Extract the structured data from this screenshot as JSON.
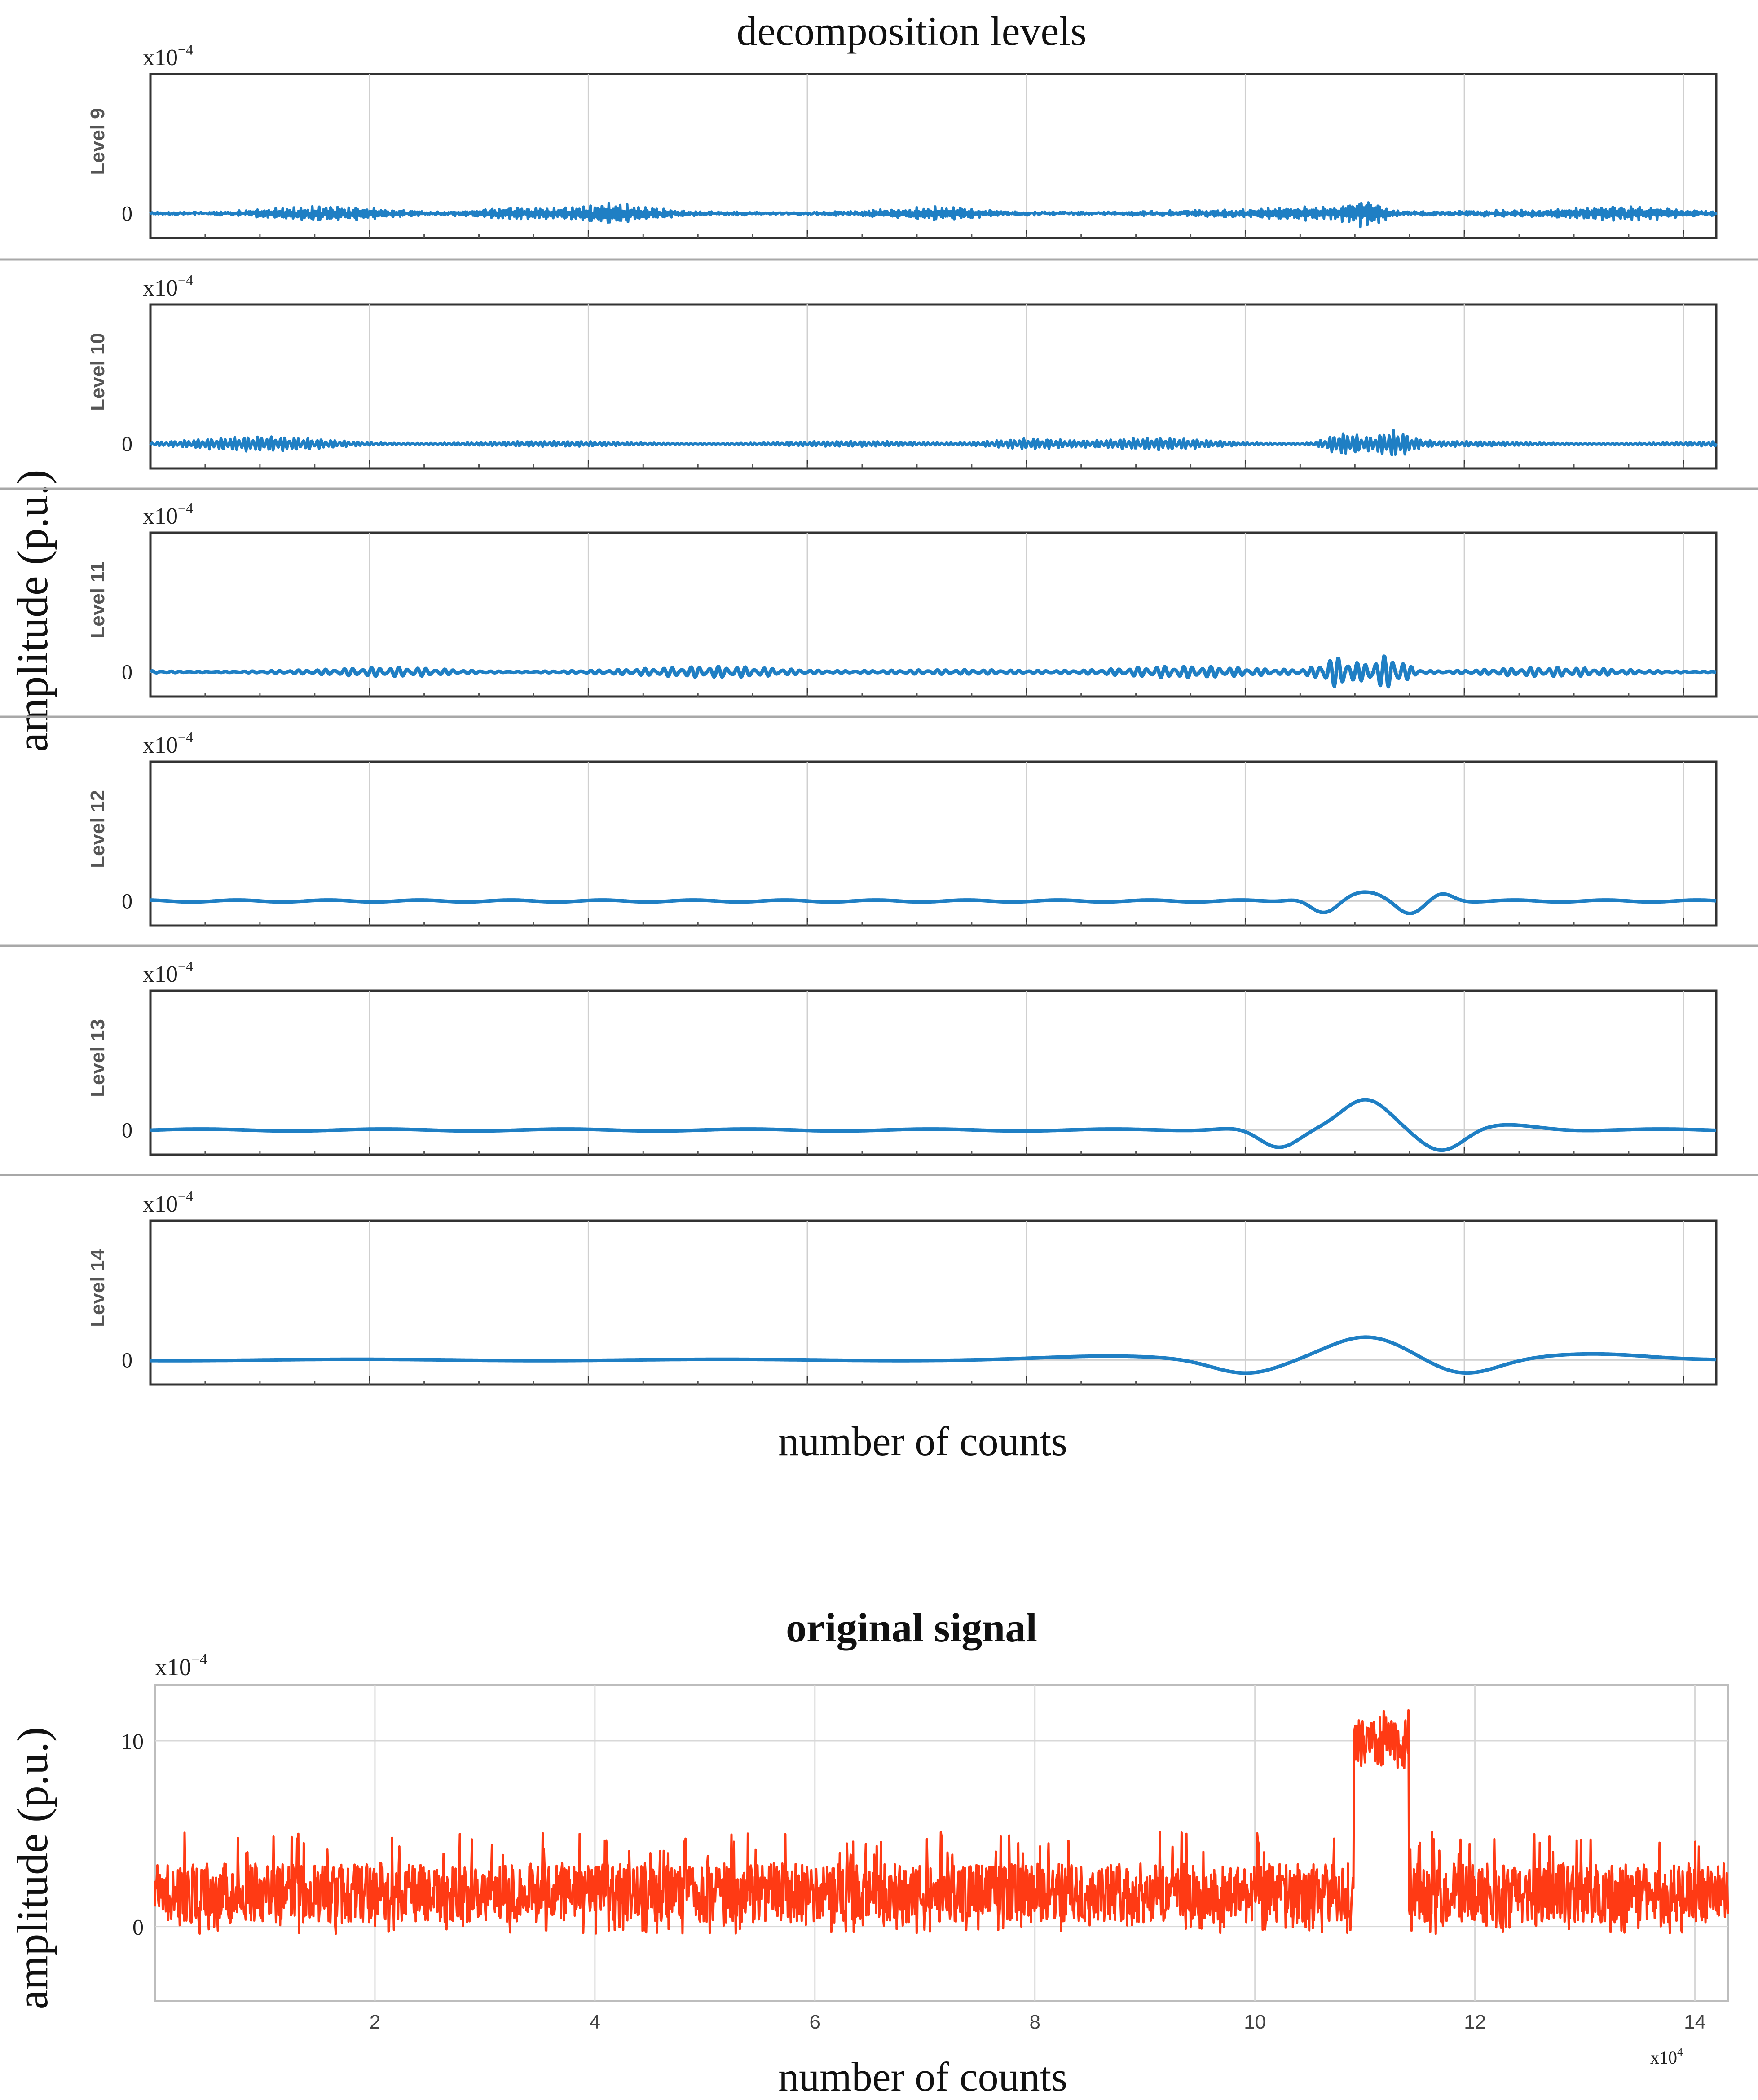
{
  "chart_data": {
    "type": "line",
    "decomposition": {
      "title": "decomposition levels",
      "xlabel": "number of counts",
      "ylabel": "amplitude (p.u.)",
      "xlim": [
        0,
        14.3
      ],
      "xticks": [
        2,
        4,
        6,
        8,
        10,
        12,
        14
      ],
      "x_scale_label": "x10",
      "x_scale_exp": "4",
      "color": "#1f7fc4",
      "panels": [
        {
          "label": "Level 9",
          "scale_label": "x10",
          "scale_exp": "−4",
          "ytick": "0",
          "ylim": [
            -0.15,
            0.85
          ],
          "description": "high-frequency oscillation around 0, largest burst near x=11.1",
          "events": [
            {
              "x": 11.1,
              "amplitude": 0.1
            }
          ]
        },
        {
          "label": "Level 10",
          "scale_label": "x10",
          "scale_exp": "−4",
          "ytick": "0",
          "ylim": [
            -0.15,
            0.85
          ],
          "description": "oscillation around 0 with bursts near x=10.9 and x=11.4",
          "events": [
            {
              "x": 10.9,
              "amplitude": 0.1
            },
            {
              "x": 11.4,
              "amplitude": 0.1
            }
          ]
        },
        {
          "label": "Level 11",
          "scale_label": "x10",
          "scale_exp": "−4",
          "ytick": "0",
          "ylim": [
            -0.15,
            0.85
          ],
          "description": "lower-frequency ripples, bursts near x=10.9 and x=11.3",
          "events": [
            {
              "x": 10.9,
              "amplitude": 0.09
            },
            {
              "x": 11.3,
              "amplitude": 0.1
            }
          ]
        },
        {
          "label": "Level 12",
          "scale_label": "x10",
          "scale_exp": "−4",
          "ytick": "0",
          "ylim": [
            -0.15,
            0.85
          ],
          "description": "smooth ripples; dips at x=10.7 and x=11.5, peak near x=11.1",
          "events": [
            {
              "x": 10.7,
              "amplitude": -0.07
            },
            {
              "x": 11.1,
              "amplitude": 0.05
            },
            {
              "x": 11.5,
              "amplitude": -0.07
            }
          ]
        },
        {
          "label": "Level 13",
          "scale_label": "x10",
          "scale_exp": "−4",
          "ytick": "0",
          "ylim": [
            -0.15,
            0.85
          ],
          "description": "slow wave; minima at x=10.3 and x=11.8, maximum at x=11.1",
          "events": [
            {
              "x": 10.3,
              "amplitude": -0.12
            },
            {
              "x": 11.1,
              "amplitude": 0.18
            },
            {
              "x": 11.8,
              "amplitude": -0.13
            }
          ]
        },
        {
          "label": "Level 14",
          "scale_label": "x10",
          "scale_exp": "−4",
          "ytick": "0",
          "ylim": [
            -0.15,
            0.85
          ],
          "description": "very slow wave; minima near x=10.0 and x=12.0, maximum near x=11.1",
          "events": [
            {
              "x": 10.0,
              "amplitude": -0.08
            },
            {
              "x": 11.1,
              "amplitude": 0.14
            },
            {
              "x": 12.0,
              "amplitude": -0.09
            }
          ]
        }
      ]
    },
    "original": {
      "title": "original signal",
      "xlabel": "number of counts",
      "ylabel": "amplitude (p.u.)",
      "xlim": [
        0,
        14.3
      ],
      "ylim": [
        -4,
        13
      ],
      "xticks": [
        2,
        4,
        6,
        8,
        10,
        12,
        14
      ],
      "xtick_labels": [
        "2",
        "4",
        "6",
        "8",
        "10",
        "12",
        "14"
      ],
      "yticks": [
        0,
        10
      ],
      "ytick_labels": [
        "0",
        "10"
      ],
      "y_scale_label": "x10",
      "y_scale_exp": "−4",
      "x_scale_label": "x10",
      "x_scale_exp": "4",
      "color": "#ff3a14",
      "baseline_mean": 1.8,
      "baseline_range": [
        -0.5,
        5
      ],
      "pulse": {
        "x_start": 10.9,
        "x_end": 11.4,
        "level": 9.8,
        "peak": 11.7
      }
    }
  }
}
